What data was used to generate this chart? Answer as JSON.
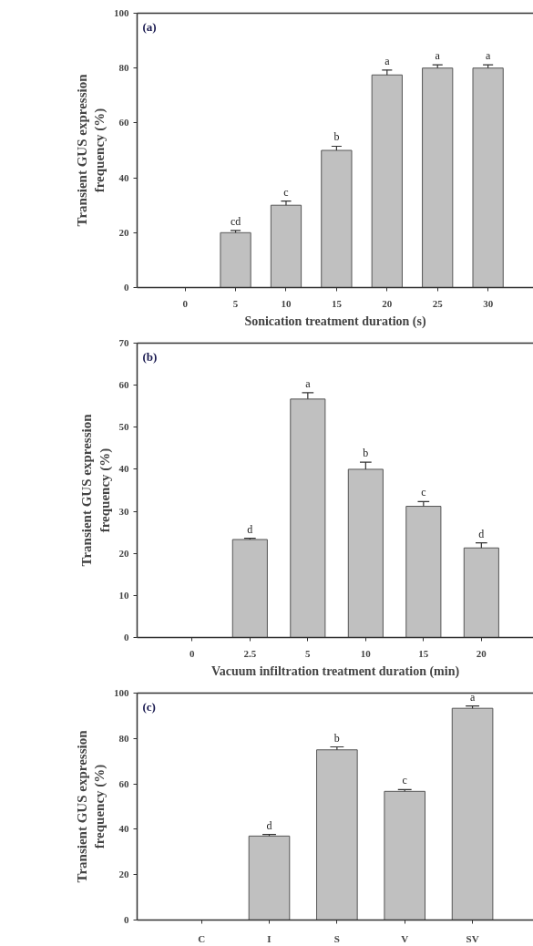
{
  "chart_data": [
    {
      "type": "bar",
      "xlabel": "Sonication treatment duration (s)",
      "ylabel": "Transient GUS expression frequency (%)",
      "categories": [
        "0",
        "5",
        "10",
        "15",
        "20",
        "25",
        "30"
      ],
      "values": [
        0,
        20,
        30,
        50,
        77.5,
        80,
        80
      ],
      "errors": [
        null,
        [
          20,
          20.8
        ],
        [
          30,
          31.5
        ],
        [
          50,
          51.5
        ],
        [
          77.5,
          79.3
        ],
        [
          80,
          81.2
        ],
        [
          80,
          81.2
        ]
      ],
      "color": "#c0c0c0",
      "ylim": [
        0,
        100
      ],
      "yticks": [
        0,
        20,
        40,
        60,
        80,
        100
      ],
      "grid": false,
      "annotations": [
        "(a)",
        {
          "text": "cd",
          "x": "5",
          "y": 20.8
        },
        {
          "text": "c",
          "x": "10",
          "y": 31.5
        },
        {
          "text": "b",
          "x": "15",
          "y": 51.5
        },
        {
          "text": "a",
          "x": "20",
          "y": 79.3
        },
        {
          "text": "a",
          "x": "25",
          "y": 81.2
        },
        {
          "text": "a",
          "x": "30",
          "y": 81.2
        }
      ]
    },
    {
      "type": "bar",
      "xlabel": "Vacuum infiltration treatment duration (min)",
      "ylabel": "Transient GUS expression frequency (%)",
      "categories": [
        "0",
        "2.5",
        "5",
        "10",
        "15",
        "20"
      ],
      "values": [
        0,
        23.3,
        56.7,
        40,
        31.2,
        21.3
      ],
      "errors": [
        null,
        [
          23.3,
          23.6
        ],
        [
          56.7,
          58.2
        ],
        [
          40,
          41.7
        ],
        [
          31.2,
          32.3
        ],
        [
          21.3,
          22.5
        ]
      ],
      "color": "#c0c0c0",
      "ylim": [
        0,
        70
      ],
      "yticks": [
        0,
        10,
        20,
        30,
        40,
        50,
        60,
        70
      ],
      "grid": false,
      "annotations": [
        "(b)",
        {
          "text": "d",
          "x": "2.5",
          "y": 23.6
        },
        {
          "text": "a",
          "x": "5",
          "y": 58.2
        },
        {
          "text": "b",
          "x": "10",
          "y": 41.7
        },
        {
          "text": "c",
          "x": "15",
          "y": 32.3
        },
        {
          "text": "d",
          "x": "20",
          "y": 22.5
        }
      ]
    },
    {
      "type": "bar",
      "ylabel": "Transient GUS expression frequency (%)",
      "categories": [
        "C",
        "I",
        "S",
        "V",
        "SV"
      ],
      "values": [
        0,
        37,
        75,
        56.7,
        93.3
      ],
      "errors": [
        null,
        [
          37,
          37.7
        ],
        [
          75,
          76.3
        ],
        [
          56.7,
          57.5
        ],
        [
          93.3,
          94.3
        ]
      ],
      "color": "#c0c0c0",
      "ylim": [
        0,
        100
      ],
      "yticks": [
        0,
        20,
        40,
        60,
        80,
        100
      ],
      "grid": false,
      "annotations": [
        "(c)",
        {
          "text": "d",
          "x": "I",
          "y": 37.7
        },
        {
          "text": "b",
          "x": "S",
          "y": 76.3
        },
        {
          "text": "c",
          "x": "V",
          "y": 57.5
        },
        {
          "text": "a",
          "x": "SV",
          "y": 94.3
        }
      ]
    }
  ]
}
